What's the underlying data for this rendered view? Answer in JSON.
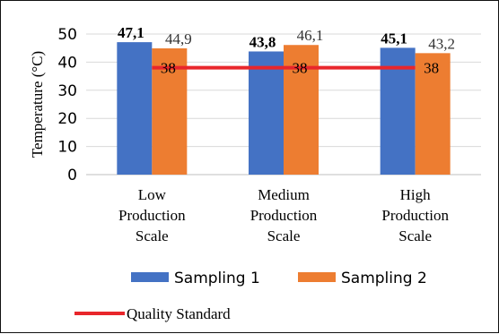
{
  "chart_data": {
    "type": "bar",
    "categories": [
      [
        "Low",
        "Production",
        "Scale"
      ],
      [
        "Medium",
        "Production",
        "Scale"
      ],
      [
        "High",
        "Production",
        "Scale"
      ]
    ],
    "series": [
      {
        "name": "Sampling 1",
        "values": [
          47.1,
          43.8,
          45.1
        ],
        "value_labels": [
          "47,1",
          "43,8",
          "45,1"
        ],
        "color": "#4472C4"
      },
      {
        "name": "Sampling 2",
        "values": [
          44.9,
          46.1,
          43.2
        ],
        "value_labels": [
          "44,9",
          "46,1",
          "43,2"
        ],
        "color": "#ED7D31"
      }
    ],
    "reference_line": {
      "name": "Quality Standard",
      "value": 38,
      "value_label": "38",
      "color": "#E8262B"
    },
    "ylabel": "Temperature (°C)",
    "ylim": [
      0,
      50
    ],
    "yticks": [
      0,
      10,
      20,
      30,
      40,
      50
    ],
    "grid": true,
    "legend_position": "bottom"
  }
}
